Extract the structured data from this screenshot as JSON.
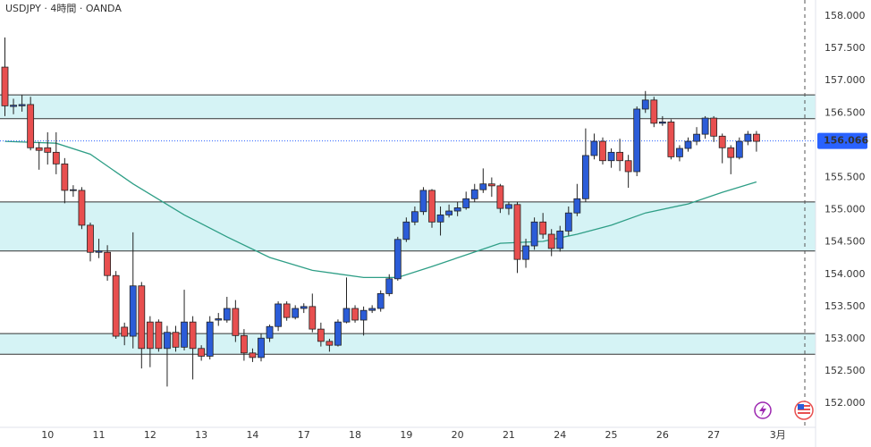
{
  "chart_data": {
    "type": "candlestick",
    "title": "USDJPY · 4時間 · OANDA",
    "open": [
      157.21,
      156.6,
      156.61,
      156.63,
      155.96,
      155.96,
      155.89,
      155.71,
      155.3,
      155.3,
      154.76,
      154.34,
      154.34,
      153.98,
      153.18,
      153.04,
      153.82,
      153.26,
      153.26,
      152.85,
      153.1,
      152.87,
      153.26,
      152.85,
      152.73,
      153.29,
      153.29,
      153.47,
      153.05,
      152.78,
      152.71,
      153.01,
      153.19,
      153.54,
      153.33,
      153.47,
      153.5,
      153.15,
      152.96,
      152.9,
      153.26,
      153.47,
      153.29,
      153.44,
      153.47,
      153.7,
      153.93,
      154.54,
      154.81,
      154.97,
      155.3,
      154.81,
      154.92,
      154.98,
      155.03,
      155.17,
      155.31,
      155.4,
      155.37,
      155.02,
      155.08,
      154.23,
      154.44,
      154.81,
      154.62,
      154.4,
      154.67,
      154.95,
      155.17,
      155.84,
      156.06,
      155.76,
      155.89,
      155.76,
      155.59,
      156.56,
      156.7,
      156.34,
      156.36,
      155.82,
      155.95,
      156.06,
      156.17,
      156.42,
      156.14,
      155.96,
      155.81,
      156.06,
      156.17
    ],
    "high": [
      157.67,
      156.72,
      156.78,
      156.75,
      156.05,
      156.2,
      156.2,
      155.8,
      155.38,
      155.35,
      154.8,
      154.55,
      154.45,
      154.05,
      153.25,
      154.65,
      153.88,
      153.35,
      153.3,
      153.2,
      153.2,
      153.76,
      153.35,
      152.9,
      153.35,
      153.4,
      153.65,
      153.6,
      153.15,
      152.85,
      153.08,
      153.22,
      153.58,
      153.58,
      153.52,
      153.55,
      153.7,
      153.25,
      153.0,
      153.3,
      153.95,
      153.52,
      153.5,
      153.52,
      153.75,
      154.0,
      154.58,
      154.88,
      155.05,
      155.35,
      155.32,
      155.05,
      155.08,
      155.12,
      155.28,
      155.4,
      155.64,
      155.5,
      155.4,
      155.12,
      155.12,
      154.55,
      154.88,
      154.95,
      154.7,
      154.75,
      155.05,
      155.4,
      156.26,
      156.18,
      156.12,
      155.95,
      156.1,
      155.85,
      156.6,
      156.84,
      156.75,
      156.45,
      156.4,
      156.0,
      156.12,
      156.28,
      156.45,
      156.45,
      156.18,
      156.0,
      156.12,
      156.22,
      156.22
    ],
    "low": [
      156.45,
      156.48,
      156.52,
      155.92,
      155.62,
      155.7,
      155.55,
      155.1,
      155.2,
      154.7,
      154.2,
      154.25,
      153.9,
      153.0,
      152.9,
      152.85,
      152.54,
      152.56,
      152.8,
      152.26,
      152.8,
      152.82,
      152.37,
      152.66,
      152.68,
      153.2,
      153.25,
      152.95,
      152.66,
      152.64,
      152.65,
      152.95,
      153.12,
      153.28,
      153.3,
      153.4,
      153.1,
      152.88,
      152.8,
      152.88,
      153.24,
      153.25,
      153.05,
      153.4,
      153.42,
      153.66,
      153.9,
      154.5,
      154.76,
      154.92,
      154.72,
      154.6,
      154.88,
      154.9,
      155.0,
      155.12,
      155.26,
      155.2,
      154.95,
      154.92,
      154.02,
      154.1,
      154.38,
      154.55,
      154.28,
      154.35,
      154.6,
      154.9,
      155.12,
      155.78,
      155.7,
      155.65,
      155.6,
      155.34,
      155.52,
      156.5,
      156.28,
      156.3,
      155.78,
      155.75,
      155.9,
      156.0,
      156.1,
      156.05,
      155.72,
      155.55,
      155.78,
      156.0,
      155.9
    ],
    "close": [
      156.61,
      156.62,
      156.63,
      155.96,
      155.92,
      155.89,
      155.71,
      155.3,
      155.31,
      154.76,
      154.34,
      154.36,
      153.98,
      153.04,
      153.04,
      153.82,
      152.85,
      152.85,
      152.85,
      153.1,
      152.87,
      153.26,
      152.85,
      152.73,
      153.26,
      153.31,
      153.47,
      153.05,
      152.78,
      152.71,
      153.01,
      153.19,
      153.54,
      153.33,
      153.47,
      153.5,
      153.15,
      152.96,
      152.9,
      153.26,
      153.47,
      153.29,
      153.44,
      153.47,
      153.7,
      153.93,
      154.54,
      154.81,
      154.97,
      155.3,
      154.81,
      154.92,
      154.98,
      155.03,
      155.17,
      155.31,
      155.4,
      155.37,
      155.02,
      155.08,
      154.23,
      154.44,
      154.81,
      154.62,
      154.4,
      154.67,
      154.95,
      155.17,
      155.84,
      156.06,
      155.76,
      155.89,
      155.76,
      155.59,
      156.56,
      156.7,
      156.34,
      156.36,
      155.82,
      155.95,
      156.06,
      156.17,
      156.42,
      156.14,
      155.96,
      155.81,
      156.06,
      156.17,
      156.06
    ],
    "up_color": "#2b5cd8",
    "down_color": "#e84f4f",
    "ma": {
      "color": "#2e9e86",
      "x": [
        0,
        6,
        10,
        15,
        21,
        26,
        31,
        36,
        42,
        46,
        50,
        54,
        58,
        63,
        67,
        71,
        75,
        80,
        84,
        88
      ],
      "values": [
        156.06,
        156.03,
        155.86,
        155.4,
        154.92,
        154.58,
        154.26,
        154.06,
        153.95,
        153.95,
        154.12,
        154.3,
        154.48,
        154.51,
        154.62,
        154.76,
        154.95,
        155.09,
        155.27,
        155.43
      ]
    },
    "zones": [
      [
        156.41,
        156.78
      ],
      [
        154.36,
        155.12
      ],
      [
        152.76,
        153.08
      ]
    ],
    "zone_color": "#d5f3f5",
    "last_price": {
      "value": 156.066,
      "label": "156.066",
      "color": "#2962ff"
    },
    "ylim": [
      151.6,
      158.25
    ],
    "yticks": [
      {
        "value": 152,
        "label": "152.000"
      },
      {
        "value": 152.5,
        "label": "152.500"
      },
      {
        "value": 153,
        "label": "153.000"
      },
      {
        "value": 153.5,
        "label": "153.500"
      },
      {
        "value": 154,
        "label": "154.000"
      },
      {
        "value": 154.5,
        "label": "154.500"
      },
      {
        "value": 155,
        "label": "155.000"
      },
      {
        "value": 155.5,
        "label": "155.500"
      },
      {
        "value": 156,
        "label": "156.000"
      },
      {
        "value": 156.5,
        "label": "156.500"
      },
      {
        "value": 157,
        "label": "157.000"
      },
      {
        "value": 157.5,
        "label": "157.500"
      },
      {
        "value": 158,
        "label": "158.000"
      }
    ],
    "xticks": [
      {
        "value": 5,
        "label": "10"
      },
      {
        "value": 11,
        "label": "11"
      },
      {
        "value": 17,
        "label": "12"
      },
      {
        "value": 23,
        "label": "13"
      },
      {
        "value": 29,
        "label": "14"
      },
      {
        "value": 35,
        "label": "17"
      },
      {
        "value": 41,
        "label": "18"
      },
      {
        "value": 47,
        "label": "19"
      },
      {
        "value": 53,
        "label": "20"
      },
      {
        "value": 59,
        "label": "21"
      },
      {
        "value": 65,
        "label": "24"
      },
      {
        "value": 71,
        "label": "25"
      },
      {
        "value": 77,
        "label": "26"
      },
      {
        "value": 83,
        "label": "27"
      },
      {
        "value": 90.5,
        "label": "3月"
      }
    ]
  }
}
